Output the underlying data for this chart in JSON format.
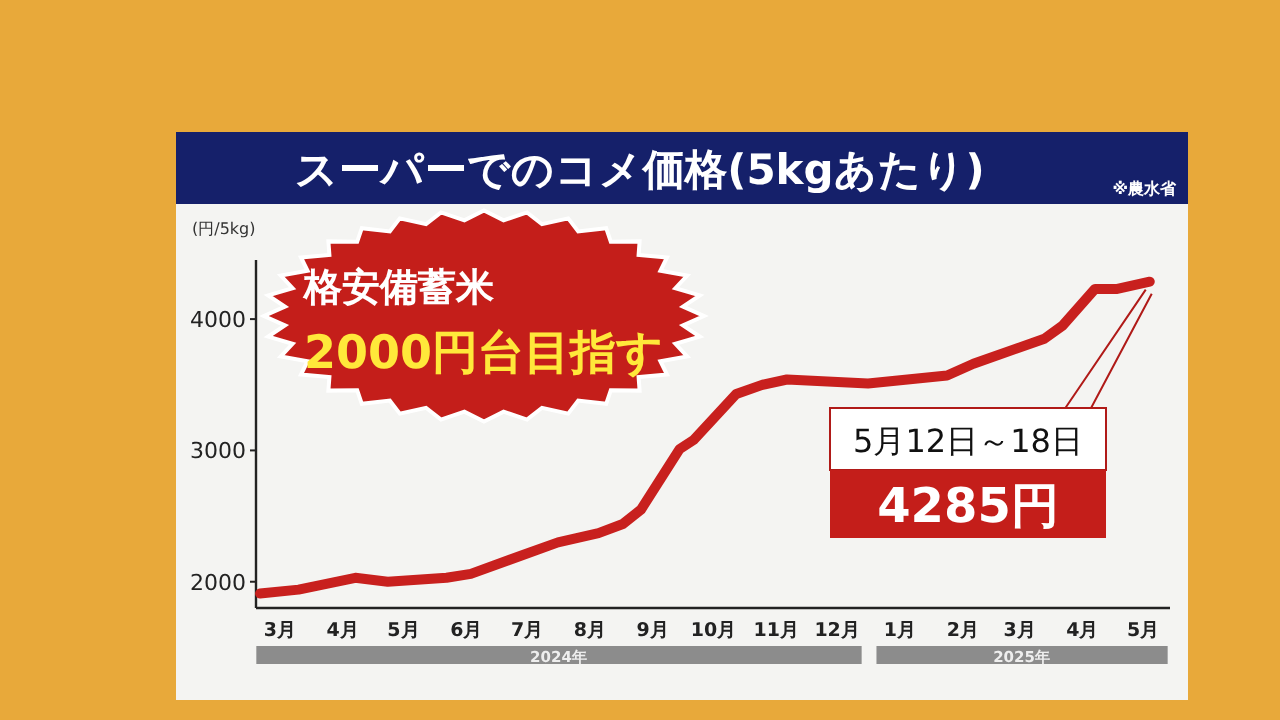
{
  "chart_data": {
    "type": "line",
    "title": "スーパーでのコメ価格(5kgあたり)",
    "ylabel": "(円/5kg)",
    "x": [
      "2024-03-05",
      "2024-03-24",
      "2024-04-21",
      "2024-05-07",
      "2024-06-05",
      "2024-06-17",
      "2024-07-12",
      "2024-07-30",
      "2024-08-19",
      "2024-08-31",
      "2024-09-09",
      "2024-09-28",
      "2024-10-05",
      "2024-10-26",
      "2024-11-08",
      "2024-11-20",
      "2024-12-30",
      "2025-02-07",
      "2025-02-20",
      "2025-03-27",
      "2025-04-05",
      "2025-04-21",
      "2025-05-02",
      "2025-05-18"
    ],
    "series": [
      {
        "color": "#c8201e",
        "values": [
          1910,
          1940,
          2030,
          2000,
          2030,
          2060,
          2200,
          2300,
          2370,
          2440,
          2550,
          3010,
          3080,
          3430,
          3500,
          3540,
          3510,
          3570,
          3660,
          3850,
          3950,
          4230,
          4230,
          4285
        ]
      }
    ],
    "xlim": [
      "2024-03-03",
      "2025-05-28"
    ],
    "ylim": [
      1800,
      4450
    ],
    "yticks": [
      2000,
      3000,
      4000
    ],
    "xticks": [
      {
        "value": "2024-03-15",
        "label": "3月"
      },
      {
        "value": "2024-04-15",
        "label": "4月"
      },
      {
        "value": "2024-05-15",
        "label": "5月"
      },
      {
        "value": "2024-06-15",
        "label": "6月"
      },
      {
        "value": "2024-07-15",
        "label": "7月"
      },
      {
        "value": "2024-08-15",
        "label": "8月"
      },
      {
        "value": "2024-09-15",
        "label": "9月"
      },
      {
        "value": "2024-10-15",
        "label": "10月"
      },
      {
        "value": "2024-11-15",
        "label": "11月"
      },
      {
        "value": "2024-12-15",
        "label": "12月"
      },
      {
        "value": "2025-01-15",
        "label": "1月"
      },
      {
        "value": "2025-02-15",
        "label": "2月"
      },
      {
        "value": "2025-03-15",
        "label": "3月"
      },
      {
        "value": "2025-04-15",
        "label": "4月"
      },
      {
        "value": "2025-05-15",
        "label": "5月"
      }
    ],
    "annotations": [
      "※農水省",
      "格安備蓄米",
      "2000円台目指す",
      "2024年",
      "2025年",
      {
        "text": "5月12日～18日",
        "x": "2025-05-18",
        "y": 4285
      },
      "4285円"
    ]
  }
}
